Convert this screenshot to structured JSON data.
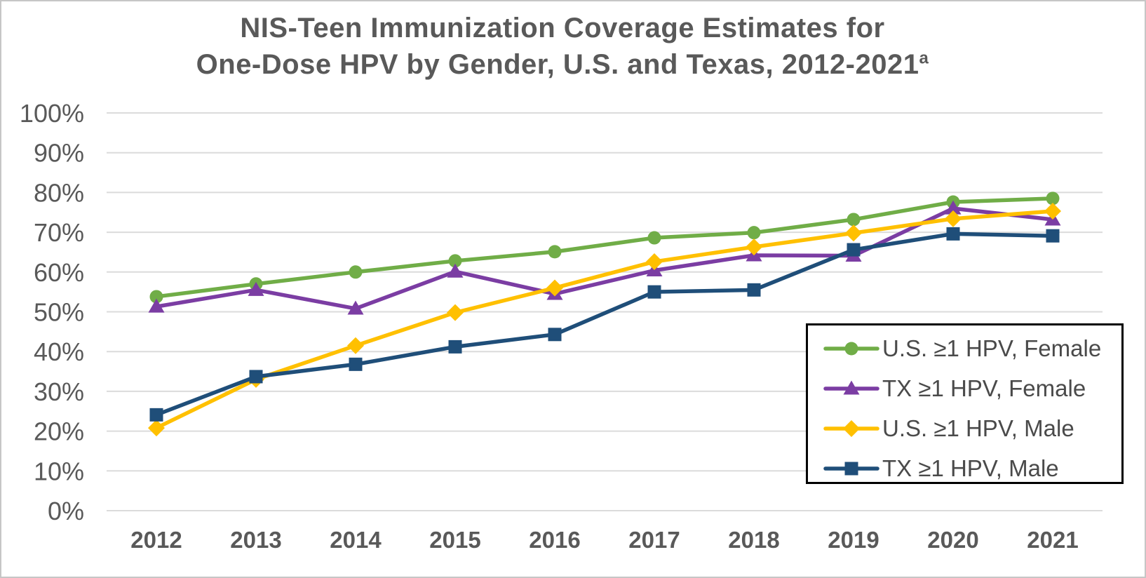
{
  "title": {
    "line1": "NIS-Teen Immunization Coverage Estimates for",
    "line2": "One-Dose HPV by Gender, U.S. and Texas, 2012-2021",
    "superscript": "a",
    "color": "#595959"
  },
  "chart_data": {
    "type": "line",
    "categories": [
      "2012",
      "2013",
      "2014",
      "2015",
      "2016",
      "2017",
      "2018",
      "2019",
      "2020",
      "2021"
    ],
    "series": [
      {
        "name": "U.S. ≥1 HPV, Female",
        "marker": "circle",
        "color": "#70AD47",
        "values": [
          53.8,
          57.0,
          60.0,
          62.8,
          65.1,
          68.6,
          69.9,
          73.2,
          77.6,
          78.5
        ]
      },
      {
        "name": "TX ≥1 HPV, Female",
        "marker": "triangle",
        "color": "#7B3DA3",
        "values": [
          51.3,
          55.5,
          50.8,
          60.1,
          54.5,
          60.4,
          64.2,
          64.1,
          76.0,
          73.2
        ]
      },
      {
        "name": "U.S. ≥1 HPV, Male",
        "marker": "diamond",
        "color": "#FFC000",
        "values": [
          20.8,
          33.0,
          41.5,
          49.8,
          56.0,
          62.6,
          66.3,
          69.8,
          73.4,
          75.3
        ]
      },
      {
        "name": "TX ≥1 HPV, Male",
        "marker": "square",
        "color": "#1F4E79",
        "values": [
          24.1,
          33.7,
          36.8,
          41.2,
          44.3,
          55.0,
          55.5,
          65.6,
          69.6,
          69.1
        ]
      }
    ],
    "xlabel": "",
    "ylabel": "",
    "ylim": [
      0,
      100
    ],
    "y_tick_step": 10,
    "y_ticks": [
      "0%",
      "10%",
      "20%",
      "30%",
      "40%",
      "50%",
      "60%",
      "70%",
      "80%",
      "90%",
      "100%"
    ],
    "grid": "horizontal-only",
    "gridline_color": "#DBDBDB",
    "axis_label_color": "#595959",
    "legend_position": "inside-bottom-right",
    "legend_border_color": "#000000"
  }
}
